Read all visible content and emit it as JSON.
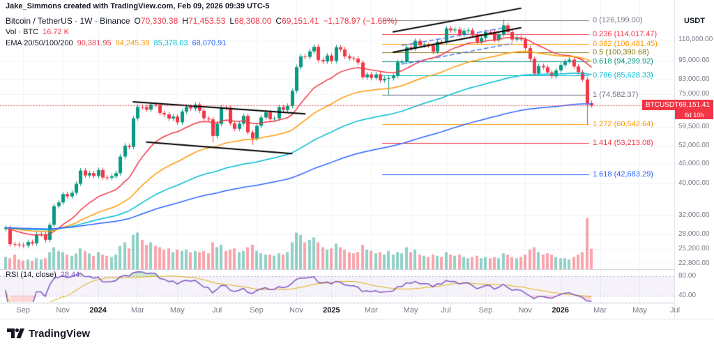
{
  "watermark": "Jake_Simmons created with TradingView.com, Feb 09, 2026 09:39 UTC-5",
  "legend": {
    "title": "Bitcoin / TetherUS · 1W · Binance",
    "o_label": "O",
    "o": "70,330.38",
    "h_label": "H",
    "h": "71,453.53",
    "l_label": "L",
    "l": "68,308.00",
    "c_label": "C",
    "c": "69,151.41",
    "change": "−1,178.97 (−1.68%)",
    "vol_label": "Vol · BTC",
    "vol_value": "16.72 K",
    "ema_label": "EMA 20/50/100/200",
    "ema20": "90,381.95",
    "ema50": "94,245.39",
    "ema100": "85,378.03",
    "ema200": "68,070.91"
  },
  "rsi_legend": {
    "label": "RSI (14, close)",
    "value": "28.44"
  },
  "price_badge": {
    "symbol": "BTCUSDT",
    "price": "69,151.41",
    "countdown": "6d 10h"
  },
  "logo": {
    "text": "TradingView"
  },
  "axis": {
    "currency": "USDT",
    "price_labels": [
      {
        "t": "110,000.00",
        "p": 110000
      },
      {
        "t": "95,000.00",
        "p": 95000
      },
      {
        "t": "83,000.00",
        "p": 83000
      },
      {
        "t": "75,000.00",
        "p": 75000
      },
      {
        "t": "59,500.00",
        "p": 59500
      },
      {
        "t": "52,000.00",
        "p": 52000
      },
      {
        "t": "46,000.00",
        "p": 46000
      },
      {
        "t": "40,000.00",
        "p": 40000
      },
      {
        "t": "32,000.00",
        "p": 32000
      },
      {
        "t": "28,000.00",
        "p": 28000
      },
      {
        "t": "25,200.00",
        "p": 25200
      },
      {
        "t": "22,800.00",
        "p": 22800
      }
    ],
    "rsi_labels": [
      {
        "t": "80.00",
        "v": 80
      },
      {
        "t": "40.00",
        "v": 40
      }
    ],
    "time_labels": [
      {
        "t": "Sep",
        "w": 4
      },
      {
        "t": "Nov",
        "w": 13
      },
      {
        "t": "2024",
        "w": 21,
        "y": true
      },
      {
        "t": "Mar",
        "w": 30
      },
      {
        "t": "May",
        "w": 39
      },
      {
        "t": "Jul",
        "w": 48
      },
      {
        "t": "Sep",
        "w": 57
      },
      {
        "t": "Nov",
        "w": 66
      },
      {
        "t": "2025",
        "w": 74,
        "y": true
      },
      {
        "t": "Mar",
        "w": 83
      },
      {
        "t": "May",
        "w": 92
      },
      {
        "t": "Jul",
        "w": 100
      },
      {
        "t": "Sep",
        "w": 109
      },
      {
        "t": "Nov",
        "w": 118
      },
      {
        "t": "2026",
        "w": 126,
        "y": true
      },
      {
        "t": "Mar",
        "w": 135
      },
      {
        "t": "May",
        "w": 144
      },
      {
        "t": "Jul",
        "w": 152
      }
    ]
  },
  "fib_labels": [
    {
      "t": "0 (126,199.00)",
      "p": 126199.0,
      "c": "#787b86"
    },
    {
      "t": "0.236 (114,017.47)",
      "p": 114017.47,
      "c": "#f23645"
    },
    {
      "t": "0.382 (106,481.45)",
      "p": 106481.45,
      "c": "#ff9800"
    },
    {
      "t": "0.5 (100,390.68)",
      "p": 100390.68,
      "c": "#827717"
    },
    {
      "t": "0.618 (94,299.92)",
      "p": 94299.92,
      "c": "#089981"
    },
    {
      "t": "0.786 (85,628.33)",
      "p": 85628.33,
      "c": "#00bcd4"
    },
    {
      "t": "1 (74,582.37)",
      "p": 74582.37,
      "c": "#787b86"
    },
    {
      "t": "1.272 (60,542.64)",
      "p": 60542.64,
      "c": "#ff9800"
    },
    {
      "t": "1.414 (53,213.08)",
      "p": 53213.08,
      "c": "#f23645"
    },
    {
      "t": "1.618 (42,683.29)",
      "p": 42683.29,
      "c": "#2962ff"
    }
  ],
  "colors": {
    "up": "#089981",
    "down": "#f23645",
    "vol_up": "rgba(8,153,129,0.45)",
    "vol_down": "rgba(242,54,69,0.45)",
    "grid": "#f0f3fa",
    "axis_text": "#787b86",
    "text": "#131722",
    "rsi": "#7e57c2",
    "rsi_ma": "#e0b00b",
    "band": "rgba(126,87,194,0.08)",
    "accent": "#2962ff"
  },
  "chart_data": {
    "type": "candlestick",
    "symbol": "BTC/USDT",
    "exchange": "Binance",
    "interval": "1W",
    "ylabel": "USDT",
    "price_scale": "log",
    "x_range": "Aug 2023 – Jul 2026 (weekly)",
    "weeks_visible": 152,
    "last_close": 69151.41,
    "closes": [
      29300,
      26100,
      26050,
      25950,
      25850,
      26500,
      26250,
      27950,
      27950,
      26900,
      29900,
      34100,
      35000,
      37100,
      36500,
      37450,
      39900,
      43800,
      42300,
      43000,
      42150,
      43950,
      41700,
      41600,
      42050,
      43000,
      48300,
      52150,
      51700,
      63200,
      68500,
      68400,
      67200,
      69650,
      69400,
      65650,
      64950,
      63100,
      64000,
      61450,
      66300,
      68500,
      67750,
      69650,
      66700,
      63200,
      62750,
      55850,
      60800,
      68150,
      68000,
      61000,
      58700,
      60900,
      64300,
      57300,
      54850,
      60000,
      63600,
      65900,
      62850,
      63200,
      68400,
      67050,
      69000,
      76700,
      90600,
      97700,
      97300,
      101200,
      104500,
      95200,
      94300,
      98300,
      94600,
      104200,
      102600,
      97700,
      96500,
      96100,
      93600,
      84350,
      86100,
      84000,
      86100,
      82550,
      83500,
      83850,
      85150,
      93800,
      94000,
      104100,
      103250,
      109000,
      105600,
      105700,
      105450,
      101000,
      108250,
      108200,
      119000,
      117300,
      118050,
      114200,
      117000,
      117400,
      113500,
      108200,
      111200,
      115900,
      115700,
      109700,
      114000,
      121500,
      115900,
      110000,
      111500,
      110100,
      103500,
      96000,
      86600,
      91300,
      90500,
      87300,
      85000,
      88500,
      92000,
      94500,
      95500,
      91000,
      87500,
      83000,
      70330,
      69151
    ],
    "overrides": {
      "47": {
        "l": 53485
      },
      "56": {
        "l": 52550
      },
      "87": {
        "l": 74582.37
      },
      "113": {
        "h": 126199.0
      },
      "132": {
        "l": 60542.64
      },
      "133": {
        "o": 70330.38,
        "h": 71453.53,
        "l": 68308.0,
        "c": 69151.41
      }
    },
    "volumes_kbtc": [
      10,
      9,
      12,
      8,
      7,
      8,
      7,
      9,
      8,
      9,
      14,
      18,
      15,
      14,
      12,
      11,
      13,
      17,
      15,
      13,
      11,
      14,
      12,
      11,
      10,
      12,
      19,
      22,
      17,
      28,
      30,
      24,
      20,
      22,
      19,
      18,
      16,
      17,
      14,
      16,
      15,
      16,
      14,
      15,
      14,
      15,
      13,
      22,
      18,
      20,
      15,
      16,
      17,
      14,
      15,
      18,
      20,
      15,
      13,
      12,
      12,
      11,
      13,
      12,
      14,
      22,
      30,
      28,
      22,
      24,
      26,
      22,
      18,
      16,
      17,
      21,
      18,
      16,
      14,
      13,
      14,
      20,
      16,
      15,
      13,
      14,
      12,
      15,
      12,
      14,
      13,
      18,
      14,
      16,
      12,
      11,
      10,
      12,
      11,
      10,
      14,
      12,
      11,
      12,
      10,
      9,
      10,
      11,
      9,
      10,
      9,
      10,
      9,
      13,
      12,
      10,
      9,
      10,
      12,
      16,
      18,
      14,
      12,
      13,
      12,
      10,
      9,
      9,
      8,
      10,
      12,
      14,
      42,
      16.72
    ],
    "emas": [
      {
        "period": 20,
        "color": "#f23645",
        "last": 90381.95
      },
      {
        "period": 50,
        "color": "#ff9800",
        "last": 94245.39
      },
      {
        "period": 100,
        "color": "#00bcd4",
        "last": 85378.03
      },
      {
        "period": 200,
        "color": "#2962ff",
        "last": 68070.91
      }
    ],
    "fib_x_range": {
      "w1": 85.5,
      "w2": 132.5
    },
    "trendlines": [
      {
        "w1": 29,
        "p1": 71000,
        "w2": 68,
        "p2": 65200,
        "color": "#000000",
        "width": 2
      },
      {
        "w1": 32,
        "p1": 53500,
        "w2": 65,
        "p2": 49300,
        "color": "#000000",
        "width": 2
      },
      {
        "w1": 88,
        "p1": 116000,
        "w2": 117,
        "p2": 137000,
        "color": "#000000",
        "width": 2
      },
      {
        "w1": 88,
        "p1": 100500,
        "w2": 117,
        "p2": 119500,
        "color": "#000000",
        "width": 2
      },
      {
        "w1": 90,
        "p1": 105500,
        "w2": 115,
        "p2": 120500,
        "color": "#2962ff",
        "width": 1.2,
        "dash": [
          6,
          4
        ]
      },
      {
        "w1": 90,
        "p1": 92500,
        "w2": 115,
        "p2": 107000,
        "color": "#2962ff",
        "width": 1.2,
        "dash": [
          6,
          4
        ]
      }
    ],
    "rsi": {
      "period": 14,
      "ma_period": 14,
      "bands": [
        80,
        40
      ],
      "last": 28.44
    }
  }
}
